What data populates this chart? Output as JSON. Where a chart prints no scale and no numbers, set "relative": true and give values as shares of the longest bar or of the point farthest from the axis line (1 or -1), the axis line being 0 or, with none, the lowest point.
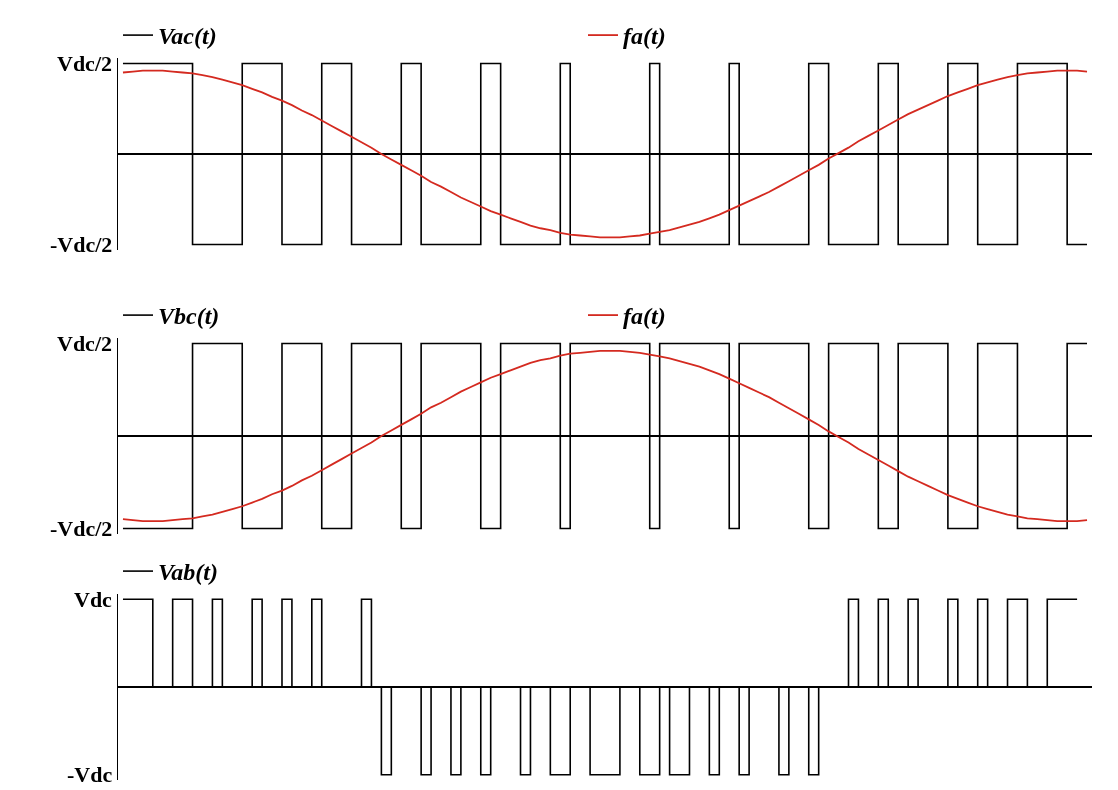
{
  "chart_data": [
    {
      "type": "step",
      "relative": true,
      "legend": "top left",
      "categories": [
        null,
        null,
        null,
        null,
        null,
        null,
        null,
        null,
        null,
        null,
        null,
        null,
        null,
        null,
        null,
        null,
        null,
        null,
        null,
        null,
        null,
        null,
        null,
        null,
        null,
        null,
        null,
        null,
        null,
        null,
        null,
        null,
        null,
        null,
        null,
        null,
        null,
        null,
        null,
        null,
        null,
        null,
        null,
        null,
        null,
        null,
        null,
        null,
        null,
        null,
        null,
        null,
        null,
        null,
        null,
        null,
        null,
        null,
        null,
        null,
        null,
        null,
        null,
        null,
        null,
        null,
        null,
        null,
        null,
        null,
        null,
        null,
        null,
        null,
        null,
        null,
        null,
        null,
        null,
        null,
        null,
        null,
        null,
        null,
        null,
        null,
        null,
        null,
        null,
        null,
        null,
        null,
        null,
        null,
        null,
        null,
        null,
        null
      ],
      "annotations": [
        "Vdc/2",
        "-Vdc/2"
      ],
      "series": [
        {
          "name": "Vac(t)",
          "color": "#000000",
          "values": [
            1,
            1,
            1,
            1,
            1,
            1,
            1,
            -1,
            -1,
            -1,
            -1,
            -1,
            1,
            1,
            1,
            1,
            -1,
            -1,
            -1,
            -1,
            1,
            1,
            1,
            -1,
            -1,
            -1,
            -1,
            -1,
            1,
            1,
            -1,
            -1,
            -1,
            -1,
            -1,
            -1,
            1,
            1,
            -1,
            -1,
            -1,
            -1,
            -1,
            -1,
            1,
            -1,
            -1,
            -1,
            -1,
            -1,
            -1,
            -1,
            -1,
            1,
            -1,
            -1,
            -1,
            -1,
            -1,
            -1,
            -1,
            1,
            -1,
            -1,
            -1,
            -1,
            -1,
            -1,
            -1,
            1,
            1,
            -1,
            -1,
            -1,
            -1,
            -1,
            1,
            1,
            -1,
            -1,
            -1,
            -1,
            -1,
            1,
            1,
            1,
            -1,
            -1,
            -1,
            -1,
            1,
            1,
            1,
            1,
            1,
            -1,
            -1,
            -1
          ]
        },
        {
          "name": "fa(t)",
          "type": "line",
          "color": "#d42a20",
          "values": [
            0.9,
            0.91,
            0.92,
            0.92,
            0.92,
            0.91,
            0.9,
            0.89,
            0.87,
            0.85,
            0.82,
            0.79,
            0.76,
            0.72,
            0.68,
            0.63,
            0.59,
            0.54,
            0.48,
            0.43,
            0.37,
            0.31,
            0.25,
            0.19,
            0.13,
            0.07,
            0.0,
            -0.06,
            -0.12,
            -0.18,
            -0.24,
            -0.31,
            -0.36,
            -0.42,
            -0.48,
            -0.53,
            -0.58,
            -0.63,
            -0.67,
            -0.71,
            -0.75,
            -0.79,
            -0.82,
            -0.84,
            -0.87,
            -0.89,
            -0.9,
            -0.91,
            -0.92,
            -0.92,
            -0.92,
            -0.91,
            -0.9,
            -0.88,
            -0.86,
            -0.84,
            -0.81,
            -0.78,
            -0.75,
            -0.71,
            -0.67,
            -0.62,
            -0.57,
            -0.52,
            -0.47,
            -0.42,
            -0.36,
            -0.3,
            -0.24,
            -0.18,
            -0.12,
            -0.05,
            0.01,
            0.07,
            0.14,
            0.2,
            0.26,
            0.32,
            0.38,
            0.44,
            0.49,
            0.54,
            0.59,
            0.64,
            0.68,
            0.72,
            0.76,
            0.79,
            0.82,
            0.85,
            0.87,
            0.89,
            0.9,
            0.91,
            0.92,
            0.92,
            0.92,
            0.91
          ]
        }
      ]
    },
    {
      "type": "step",
      "relative": true,
      "legend": "top left",
      "categories": [
        null,
        null,
        null,
        null,
        null,
        null,
        null,
        null,
        null,
        null,
        null,
        null,
        null,
        null,
        null,
        null,
        null,
        null,
        null,
        null,
        null,
        null,
        null,
        null,
        null,
        null,
        null,
        null,
        null,
        null,
        null,
        null,
        null,
        null,
        null,
        null,
        null,
        null,
        null,
        null,
        null,
        null,
        null,
        null,
        null,
        null,
        null,
        null,
        null,
        null,
        null,
        null,
        null,
        null,
        null,
        null,
        null,
        null,
        null,
        null,
        null,
        null,
        null,
        null,
        null,
        null,
        null,
        null,
        null,
        null,
        null,
        null,
        null,
        null,
        null,
        null,
        null,
        null,
        null,
        null,
        null,
        null,
        null,
        null,
        null,
        null,
        null,
        null,
        null,
        null,
        null,
        null,
        null,
        null,
        null,
        null,
        null,
        null
      ],
      "annotations": [
        "Vdc/2",
        "-Vdc/2"
      ],
      "series": [
        {
          "name": "Vbc(t)",
          "color": "#000000",
          "values": [
            -1,
            -1,
            -1,
            -1,
            -1,
            -1,
            -1,
            1,
            1,
            1,
            1,
            1,
            -1,
            -1,
            -1,
            -1,
            1,
            1,
            1,
            1,
            -1,
            -1,
            -1,
            1,
            1,
            1,
            1,
            1,
            -1,
            -1,
            1,
            1,
            1,
            1,
            1,
            1,
            -1,
            -1,
            1,
            1,
            1,
            1,
            1,
            1,
            -1,
            1,
            1,
            1,
            1,
            1,
            1,
            1,
            1,
            -1,
            1,
            1,
            1,
            1,
            1,
            1,
            1,
            -1,
            1,
            1,
            1,
            1,
            1,
            1,
            1,
            -1,
            -1,
            1,
            1,
            1,
            1,
            1,
            -1,
            -1,
            1,
            1,
            1,
            1,
            1,
            -1,
            -1,
            -1,
            1,
            1,
            1,
            1,
            -1,
            -1,
            -1,
            -1,
            -1,
            1,
            1,
            1
          ]
        },
        {
          "name": "fa(t)",
          "type": "line",
          "color": "#d42a20",
          "values": [
            -0.9,
            -0.91,
            -0.92,
            -0.92,
            -0.92,
            -0.91,
            -0.9,
            -0.89,
            -0.87,
            -0.85,
            -0.82,
            -0.79,
            -0.76,
            -0.72,
            -0.68,
            -0.63,
            -0.59,
            -0.54,
            -0.48,
            -0.43,
            -0.37,
            -0.31,
            -0.25,
            -0.19,
            -0.13,
            -0.07,
            0.0,
            0.06,
            0.12,
            0.18,
            0.24,
            0.31,
            0.36,
            0.42,
            0.48,
            0.53,
            0.58,
            0.63,
            0.67,
            0.71,
            0.75,
            0.79,
            0.82,
            0.84,
            0.87,
            0.89,
            0.9,
            0.91,
            0.92,
            0.92,
            0.92,
            0.91,
            0.9,
            0.88,
            0.86,
            0.84,
            0.81,
            0.78,
            0.75,
            0.71,
            0.67,
            0.62,
            0.57,
            0.52,
            0.47,
            0.42,
            0.36,
            0.3,
            0.24,
            0.18,
            0.12,
            0.05,
            -0.01,
            -0.07,
            -0.14,
            -0.2,
            -0.26,
            -0.32,
            -0.38,
            -0.44,
            -0.49,
            -0.54,
            -0.59,
            -0.64,
            -0.68,
            -0.72,
            -0.76,
            -0.79,
            -0.82,
            -0.85,
            -0.87,
            -0.89,
            -0.9,
            -0.91,
            -0.92,
            -0.92,
            -0.92,
            -0.91
          ]
        }
      ]
    },
    {
      "type": "step",
      "relative": true,
      "legend": "top left",
      "categories": [
        null,
        null,
        null,
        null,
        null,
        null,
        null,
        null,
        null,
        null,
        null,
        null,
        null,
        null,
        null,
        null,
        null,
        null,
        null,
        null,
        null,
        null,
        null,
        null,
        null,
        null,
        null,
        null,
        null,
        null,
        null,
        null,
        null,
        null,
        null,
        null,
        null,
        null,
        null,
        null,
        null,
        null,
        null,
        null,
        null,
        null,
        null,
        null,
        null,
        null,
        null,
        null,
        null,
        null,
        null,
        null,
        null,
        null,
        null,
        null,
        null,
        null,
        null,
        null,
        null,
        null,
        null,
        null,
        null,
        null,
        null,
        null,
        null,
        null,
        null,
        null,
        null,
        null,
        null,
        null,
        null,
        null,
        null,
        null,
        null,
        null,
        null,
        null,
        null,
        null,
        null,
        null,
        null,
        null,
        null,
        null,
        null,
        null
      ],
      "annotations": [
        "Vdc",
        "-Vdc"
      ],
      "series": [
        {
          "name": "Vab(t)",
          "color": "#000000",
          "values": [
            1,
            1,
            1,
            0,
            0,
            1,
            1,
            0,
            0,
            1,
            0,
            0,
            0,
            1,
            0,
            0,
            1,
            0,
            0,
            1,
            0,
            0,
            0,
            0,
            1,
            0,
            -1,
            0,
            0,
            0,
            -1,
            0,
            0,
            -1,
            0,
            0,
            -1,
            0,
            0,
            0,
            -1,
            0,
            0,
            -1,
            -1,
            0,
            0,
            -1,
            -1,
            -1,
            0,
            0,
            -1,
            -1,
            0,
            -1,
            -1,
            0,
            0,
            -1,
            0,
            0,
            -1,
            0,
            0,
            0,
            -1,
            0,
            0,
            -1,
            0,
            0,
            0,
            1,
            0,
            0,
            1,
            0,
            0,
            1,
            0,
            0,
            0,
            1,
            0,
            0,
            1,
            0,
            0,
            1,
            1,
            0,
            0,
            1,
            1,
            1,
            1,
            null
          ]
        }
      ]
    }
  ]
}
